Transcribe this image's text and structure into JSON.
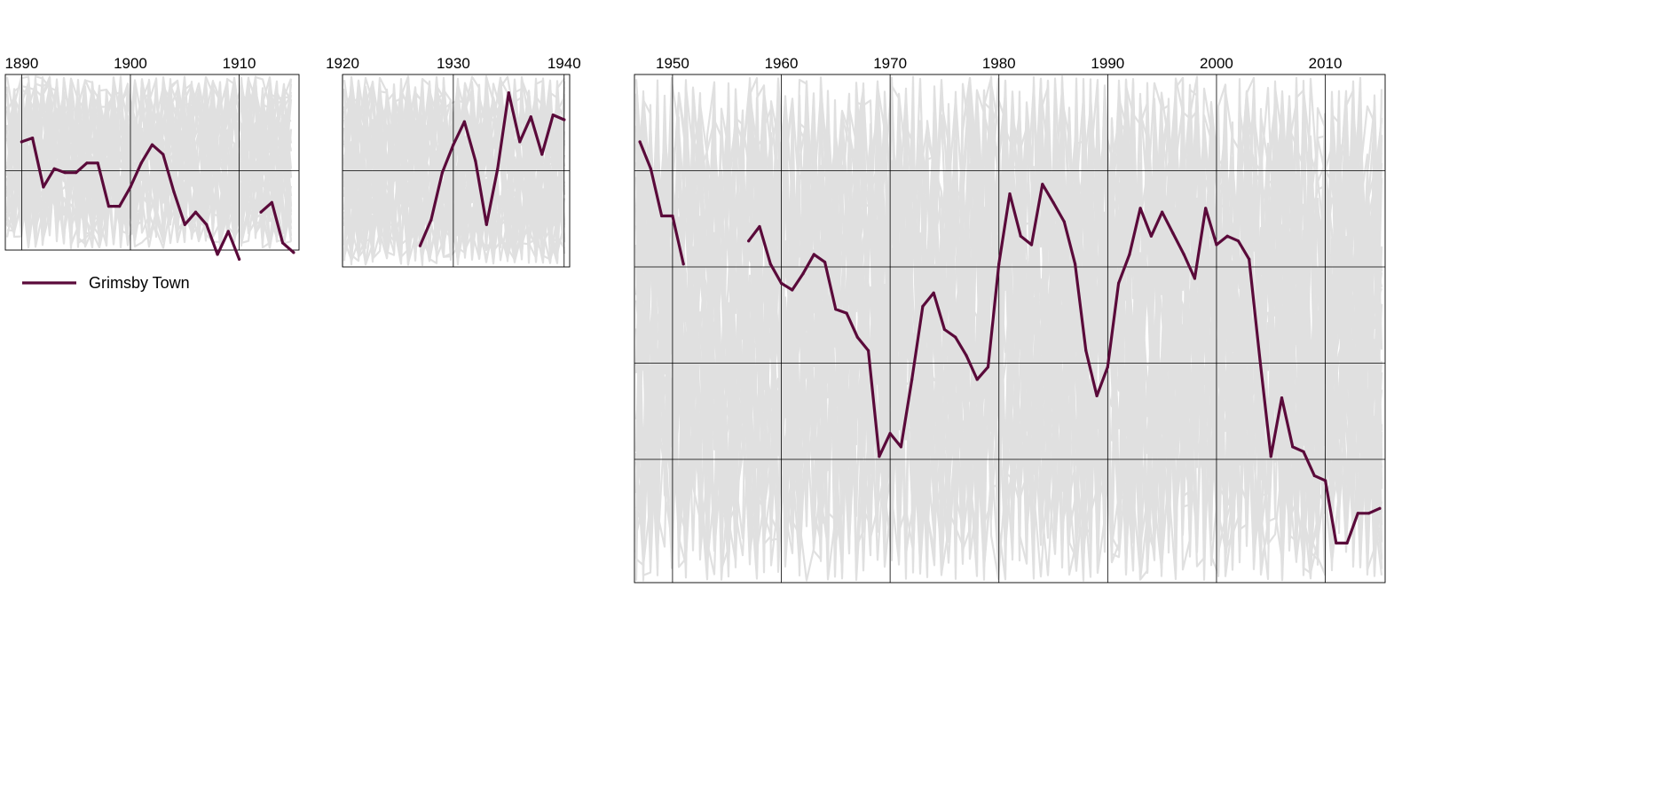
{
  "chart_data": {
    "type": "line",
    "title": "",
    "xlabel": "",
    "ylabel": "",
    "grid": true,
    "legend": {
      "position": "top-left",
      "entries": [
        "Grimsby Town"
      ]
    },
    "colors": {
      "series": "#5a0a3a",
      "background_lines": "#e0e0e0",
      "frame": "#000000"
    },
    "panels": [
      {
        "xlim": [
          1888.5,
          1915.5
        ],
        "xticks": [
          1890,
          1900,
          1910
        ]
      },
      {
        "xlim": [
          1920,
          1940.5
        ],
        "xticks": [
          1920,
          1930,
          1940
        ]
      },
      {
        "xlim": [
          1946.5,
          2015.5
        ],
        "xticks": [
          1950,
          1960,
          1970,
          1980,
          1990,
          2000,
          2010
        ]
      }
    ],
    "series": [
      {
        "name": "Grimsby Town",
        "points": [
          [
            1890,
            0.7
          ],
          [
            1891,
            0.66
          ],
          [
            1892,
            1.17
          ],
          [
            1893,
            0.98
          ],
          [
            1894,
            1.02
          ],
          [
            1895,
            1.02
          ],
          [
            1896,
            0.92
          ],
          [
            1897,
            0.92
          ],
          [
            1898,
            1.37
          ],
          [
            1899,
            1.37
          ],
          [
            1900,
            1.17
          ],
          [
            1901,
            0.92
          ],
          [
            1902,
            0.73
          ],
          [
            1903,
            0.83
          ],
          [
            1904,
            1.22
          ],
          [
            1905,
            1.56
          ],
          [
            1906,
            1.43
          ],
          [
            1907,
            1.56
          ],
          [
            1908,
            1.87
          ],
          [
            1909,
            1.63
          ],
          [
            1910,
            1.92
          ],
          [
            1912,
            1.43
          ],
          [
            1913,
            1.33
          ],
          [
            1914,
            1.75
          ],
          [
            1915,
            1.85
          ],
          [
            1927,
            1.78
          ],
          [
            1928,
            1.51
          ],
          [
            1929,
            1.02
          ],
          [
            1930,
            0.73
          ],
          [
            1931,
            0.49
          ],
          [
            1932,
            0.9
          ],
          [
            1933,
            1.56
          ],
          [
            1934,
            0.98
          ],
          [
            1935,
            0.19
          ],
          [
            1936,
            0.7
          ],
          [
            1937,
            0.44
          ],
          [
            1938,
            0.83
          ],
          [
            1939,
            0.42
          ],
          [
            1940,
            0.47
          ],
          [
            1947,
            0.7
          ],
          [
            1948,
            0.98
          ],
          [
            1949,
            1.47
          ],
          [
            1950,
            1.47
          ],
          [
            1951,
            1.97
          ],
          [
            1957,
            1.73
          ],
          [
            1958,
            1.58
          ],
          [
            1959,
            1.97
          ],
          [
            1960,
            2.17
          ],
          [
            1961,
            2.24
          ],
          [
            1962,
            2.07
          ],
          [
            1963,
            1.87
          ],
          [
            1964,
            1.95
          ],
          [
            1965,
            2.44
          ],
          [
            1966,
            2.48
          ],
          [
            1967,
            2.73
          ],
          [
            1968,
            2.87
          ],
          [
            1969,
            3.97
          ],
          [
            1970,
            3.73
          ],
          [
            1971,
            3.87
          ],
          [
            1972,
            3.17
          ],
          [
            1973,
            2.41
          ],
          [
            1974,
            2.27
          ],
          [
            1975,
            2.65
          ],
          [
            1976,
            2.73
          ],
          [
            1977,
            2.92
          ],
          [
            1978,
            3.17
          ],
          [
            1979,
            3.04
          ],
          [
            1980,
            1.97
          ],
          [
            1981,
            1.24
          ],
          [
            1982,
            1.68
          ],
          [
            1983,
            1.77
          ],
          [
            1984,
            1.14
          ],
          [
            1985,
            1.33
          ],
          [
            1986,
            1.53
          ],
          [
            1987,
            1.97
          ],
          [
            1988,
            2.87
          ],
          [
            1989,
            3.34
          ],
          [
            1990,
            3.04
          ],
          [
            1991,
            2.17
          ],
          [
            1992,
            1.87
          ],
          [
            1993,
            1.39
          ],
          [
            1994,
            1.68
          ],
          [
            1995,
            1.43
          ],
          [
            1996,
            1.65
          ],
          [
            1997,
            1.87
          ],
          [
            1998,
            2.12
          ],
          [
            1999,
            1.39
          ],
          [
            2000,
            1.77
          ],
          [
            2001,
            1.68
          ],
          [
            2002,
            1.73
          ],
          [
            2003,
            1.92
          ],
          [
            2004,
            2.97
          ],
          [
            2005,
            3.97
          ],
          [
            2006,
            3.36
          ],
          [
            2007,
            3.87
          ],
          [
            2008,
            3.92
          ],
          [
            2009,
            4.17
          ],
          [
            2010,
            4.22
          ],
          [
            2011,
            4.87
          ],
          [
            2012,
            4.87
          ],
          [
            2013,
            4.56
          ],
          [
            2014,
            4.56
          ],
          [
            2015,
            4.51
          ]
        ]
      }
    ]
  }
}
